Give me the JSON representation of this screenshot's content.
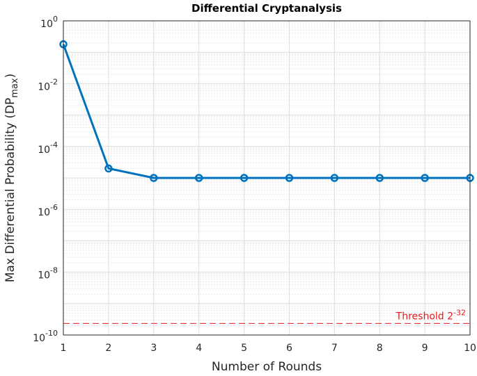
{
  "chart_data": {
    "type": "line",
    "title": "Differential Cryptanalysis",
    "xlabel": "Number of Rounds",
    "ylabel": {
      "main": "Max Differential Probability (DP",
      "sub": "max",
      "close": ")"
    },
    "x": [
      1,
      2,
      3,
      4,
      5,
      6,
      7,
      8,
      9,
      10
    ],
    "y_scale": "log",
    "xlim": [
      1,
      10
    ],
    "ylim": [
      1e-10,
      1
    ],
    "x_ticks": [
      1,
      2,
      3,
      4,
      5,
      6,
      7,
      8,
      9,
      10
    ],
    "y_ticks": [
      {
        "value": 1.0,
        "base": "10",
        "exp": "0"
      },
      {
        "value": 0.01,
        "base": "10",
        "exp": "-2"
      },
      {
        "value": 0.0001,
        "base": "10",
        "exp": "-4"
      },
      {
        "value": 1e-06,
        "base": "10",
        "exp": "-6"
      },
      {
        "value": 1e-08,
        "base": "10",
        "exp": "-8"
      },
      {
        "value": 1e-10,
        "base": "10",
        "exp": "-10"
      }
    ],
    "grid": true,
    "minor_grid": true,
    "series": [
      {
        "values": [
          0.18,
          2e-05,
          1e-05,
          1e-05,
          1e-05,
          1e-05,
          1e-05,
          1e-05,
          1e-05,
          1e-05
        ],
        "color": "#0072BD",
        "marker": "circle",
        "style": "solid"
      }
    ],
    "threshold": {
      "value": 2.3283e-10,
      "label": "Threshold 2",
      "label_exp": "-32",
      "color": "#E8191A",
      "style": "dashed"
    }
  }
}
